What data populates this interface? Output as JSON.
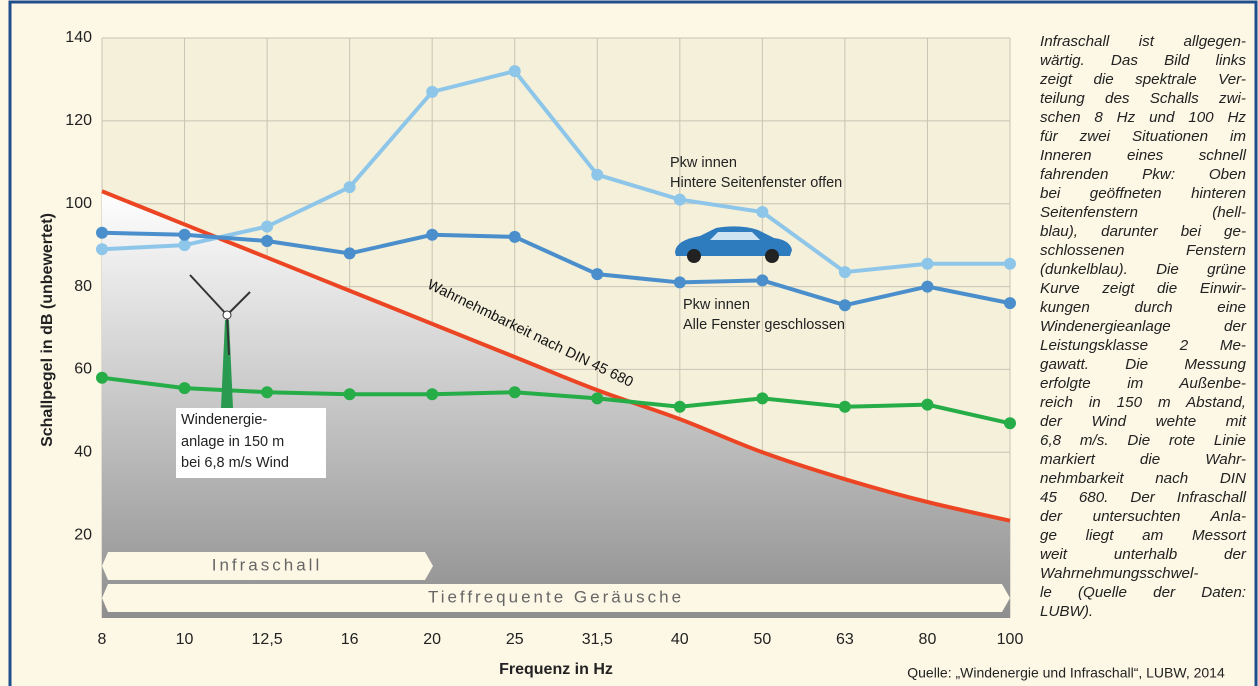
{
  "chart_data": {
    "type": "line",
    "categories": [
      "8",
      "10",
      "12,5",
      "16",
      "20",
      "25",
      "31,5",
      "40",
      "50",
      "63",
      "80",
      "100"
    ],
    "series": [
      {
        "color": "#8ec6ea",
        "markers": true,
        "values": [
          89,
          90,
          94.5,
          104,
          127,
          132,
          107,
          101,
          98,
          83.5,
          85.5,
          85.5
        ]
      },
      {
        "color": "#4a8fcb",
        "markers": true,
        "values": [
          93,
          92.5,
          91,
          88,
          92.5,
          92,
          83,
          81,
          81.5,
          75.5,
          80,
          76
        ]
      },
      {
        "color": "#26ad48",
        "markers": true,
        "values": [
          58,
          55.5,
          54.5,
          54,
          54,
          54.5,
          53,
          51,
          53,
          51,
          51.5,
          47
        ]
      },
      {
        "color": "#ec4524",
        "markers": false,
        "shade_below": true,
        "values": [
          103,
          95,
          87,
          79,
          71,
          63,
          55,
          48,
          40,
          33.5,
          28,
          23.5
        ]
      }
    ],
    "ylim": [
      0,
      140
    ],
    "yticks": [
      20,
      40,
      60,
      80,
      100,
      120,
      140
    ],
    "grid": true,
    "ylabel": "Schallpegel in dB (unbewertet)",
    "xlabel": "Frequenz in Hz",
    "annotations": [
      "Pkw innen",
      "Hintere Seitenfenster offen",
      "Pkw innen",
      "Alle Fenster geschlossen",
      "Wahrnehmbarkeit nach DIN 45 680",
      "Windenergie-",
      "anlage in 150 m",
      "bei 6,8 m/s Wind",
      "Infraschall",
      "Tieffrequente Geräusche"
    ],
    "source": "Quelle: „Windenergie und Infraschall“, LUBW, 2014",
    "description": [
      "Infraschall ist allgegen-",
      "wärtig. Das Bild links",
      "zeigt die spektrale Ver-",
      "teilung des Schalls zwi-",
      "schen 8 Hz und 100 Hz",
      "für zwei Situationen im",
      "Inneren eines schnell",
      "fahrenden Pkw: Oben",
      "bei geöffneten hinteren",
      "Seitenfenstern (hell-",
      "blau), darunter bei ge-",
      "schlossenen Fenstern",
      "(dunkelblau). Die grüne",
      "Kurve zeigt die Einwir-",
      "kungen durch eine",
      "Windenergieanlage der",
      "Leistungsklasse 2 Me-",
      "gawatt. Die Messung",
      "erfolgte im Außenbe-",
      "reich in 150 m Abstand,",
      "der Wind wehte mit",
      "6,8 m/s. Die rote Linie",
      "markiert die Wahr-",
      "nehmbarkeit nach DIN",
      "45 680. Der Infraschall",
      "der untersuchten Anla-",
      "ge liegt am Messort",
      "weit unterhalb der",
      "Wahrnehmungsschwel-",
      "le (Quelle der Daten:",
      "LUBW)."
    ]
  }
}
